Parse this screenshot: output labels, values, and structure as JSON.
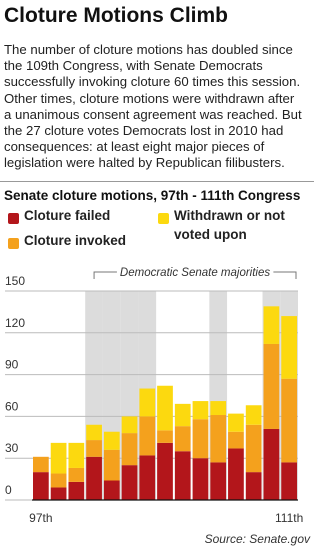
{
  "title": "Cloture Motions Climb",
  "description": [
    "The number of cloture motions has doubled since",
    "the 109th Congress, with Senate Democrats",
    "successfully invoking cloture 60 times this session.",
    "Other times, cloture motions were withdrawn after",
    "a unanimous consent agreement was reached. But",
    "the 27 cloture votes Democrats lost in 2010 had",
    "consequences: at least eight major pieces of",
    "legislation were halted by Republican filibusters."
  ],
  "chart_data": {
    "type": "stacked_bar",
    "title": "Senate cloture motions, 97th - 111th Congress",
    "categories": [
      "97th",
      null,
      null,
      null,
      null,
      null,
      null,
      null,
      null,
      null,
      null,
      null,
      null,
      null,
      "111th"
    ],
    "series": [
      {
        "name": "Cloture failed",
        "color": "#b3161b",
        "values": [
          20,
          9,
          13,
          31,
          14,
          25,
          32,
          41,
          35,
          30,
          27,
          37,
          20,
          51,
          27
        ]
      },
      {
        "name": "Cloture invoked",
        "color": "#f4a11d",
        "values": [
          11,
          10,
          10,
          12,
          22,
          23,
          28,
          9,
          18,
          28,
          34,
          12,
          34,
          61,
          60
        ]
      },
      {
        "name": "Withdrawn or not voted upon",
        "color": "#fcd90f",
        "values": [
          0,
          22,
          18,
          11,
          13,
          12,
          20,
          32,
          16,
          13,
          10,
          13,
          14,
          27,
          45
        ]
      }
    ],
    "ylim": [
      0,
      150
    ],
    "yticks": [
      0,
      30,
      60,
      90,
      120,
      150
    ],
    "grid": true,
    "annotation": "Democratic Senate majorities",
    "shaded": [
      3,
      4,
      5,
      6,
      10,
      13,
      14
    ],
    "source": "Source: Senate.gov"
  }
}
